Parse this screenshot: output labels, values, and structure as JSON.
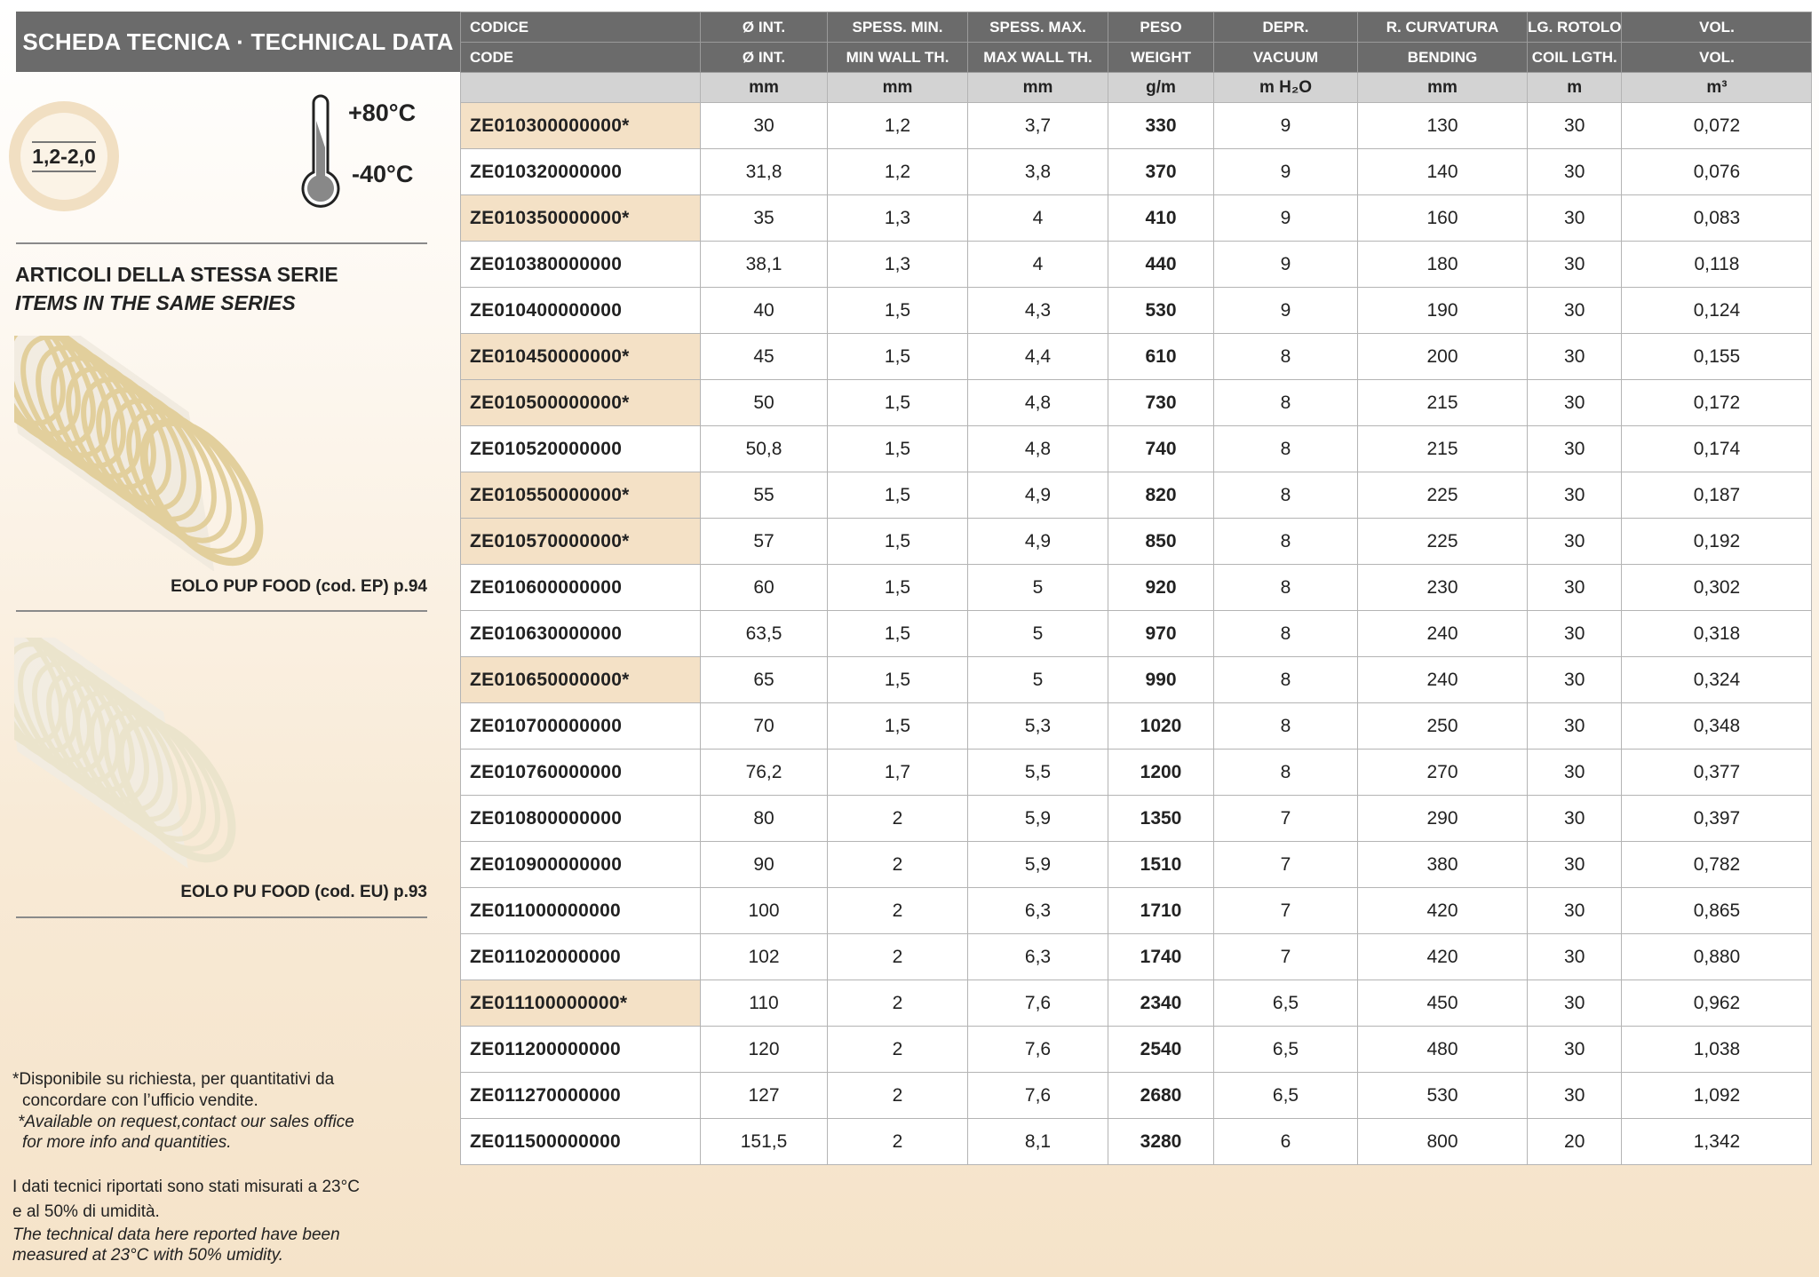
{
  "header": {
    "title": "SCHEDA TECNICA · TECHNICAL DATA"
  },
  "thickness_badge": "1,2-2,0",
  "temperature": {
    "max": "+80°C",
    "min": "-40°C"
  },
  "series": {
    "title_it": "ARTICOLI DELLA STESSA SERIE",
    "title_en": "ITEMS IN THE SAME SERIES",
    "items": [
      {
        "caption": "EOLO PUP FOOD (cod. EP) p.94",
        "image": "hose-yellow-spiral"
      },
      {
        "caption": "EOLO PU FOOD (cod. EU) p.93",
        "image": "hose-white-spiral"
      }
    ]
  },
  "notes": {
    "asterisk_it_1": "*Disponibile su richiesta, per quantitativi da",
    "asterisk_it_2": "concordare con l’ufficio vendite.",
    "asterisk_en_1": "*Available on request,contact our sales office",
    "asterisk_en_2": "for more info and quantities.",
    "conditions_it_1": "I dati tecnici riportati sono stati misurati a 23°C",
    "conditions_it_2": "e al 50% di umidità.",
    "conditions_en_1": "The technical data here reported have been",
    "conditions_en_2": "measured at 23°C with 50% umidity."
  },
  "colors": {
    "header_bg": "#6b6b6b",
    "unit_bg": "#d3d3d3",
    "highlight": "#f4e1c6"
  },
  "table": {
    "headers_it": [
      "CODICE",
      "Ø INT.",
      "SPESS. MIN.",
      "SPESS. MAX.",
      "PESO",
      "DEPR.",
      "R. CURVATURA",
      "LG. ROTOLO",
      "VOL."
    ],
    "headers_en": [
      "CODE",
      "Ø INT.",
      "MIN WALL TH.",
      "MAX WALL TH.",
      "WEIGHT",
      "VACUUM",
      "BENDING",
      "COIL LGTH.",
      "VOL."
    ],
    "units": [
      "",
      "mm",
      "mm",
      "mm",
      "g/m",
      "m H₂O",
      "mm",
      "m",
      "m³"
    ],
    "rows": [
      [
        "ZE010300000000*",
        "30",
        "1,2",
        "3,7",
        "330",
        "9",
        "130",
        "30",
        "0,072"
      ],
      [
        "ZE010320000000",
        "31,8",
        "1,2",
        "3,8",
        "370",
        "9",
        "140",
        "30",
        "0,076"
      ],
      [
        "ZE010350000000*",
        "35",
        "1,3",
        "4",
        "410",
        "9",
        "160",
        "30",
        "0,083"
      ],
      [
        "ZE010380000000",
        "38,1",
        "1,3",
        "4",
        "440",
        "9",
        "180",
        "30",
        "0,118"
      ],
      [
        "ZE010400000000",
        "40",
        "1,5",
        "4,3",
        "530",
        "9",
        "190",
        "30",
        "0,124"
      ],
      [
        "ZE010450000000*",
        "45",
        "1,5",
        "4,4",
        "610",
        "8",
        "200",
        "30",
        "0,155"
      ],
      [
        "ZE010500000000*",
        "50",
        "1,5",
        "4,8",
        "730",
        "8",
        "215",
        "30",
        "0,172"
      ],
      [
        "ZE010520000000",
        "50,8",
        "1,5",
        "4,8",
        "740",
        "8",
        "215",
        "30",
        "0,174"
      ],
      [
        "ZE010550000000*",
        "55",
        "1,5",
        "4,9",
        "820",
        "8",
        "225",
        "30",
        "0,187"
      ],
      [
        "ZE010570000000*",
        "57",
        "1,5",
        "4,9",
        "850",
        "8",
        "225",
        "30",
        "0,192"
      ],
      [
        "ZE010600000000",
        "60",
        "1,5",
        "5",
        "920",
        "8",
        "230",
        "30",
        "0,302"
      ],
      [
        "ZE010630000000",
        "63,5",
        "1,5",
        "5",
        "970",
        "8",
        "240",
        "30",
        "0,318"
      ],
      [
        "ZE010650000000*",
        "65",
        "1,5",
        "5",
        "990",
        "8",
        "240",
        "30",
        "0,324"
      ],
      [
        "ZE010700000000",
        "70",
        "1,5",
        "5,3",
        "1020",
        "8",
        "250",
        "30",
        "0,348"
      ],
      [
        "ZE010760000000",
        "76,2",
        "1,7",
        "5,5",
        "1200",
        "8",
        "270",
        "30",
        "0,377"
      ],
      [
        "ZE010800000000",
        "80",
        "2",
        "5,9",
        "1350",
        "7",
        "290",
        "30",
        "0,397"
      ],
      [
        "ZE010900000000",
        "90",
        "2",
        "5,9",
        "1510",
        "7",
        "380",
        "30",
        "0,782"
      ],
      [
        "ZE011000000000",
        "100",
        "2",
        "6,3",
        "1710",
        "7",
        "420",
        "30",
        "0,865"
      ],
      [
        "ZE011020000000",
        "102",
        "2",
        "6,3",
        "1740",
        "7",
        "420",
        "30",
        "0,880"
      ],
      [
        "ZE011100000000*",
        "110",
        "2",
        "7,6",
        "2340",
        "6,5",
        "450",
        "30",
        "0,962"
      ],
      [
        "ZE011200000000",
        "120",
        "2",
        "7,6",
        "2540",
        "6,5",
        "480",
        "30",
        "1,038"
      ],
      [
        "ZE011270000000",
        "127",
        "2",
        "7,6",
        "2680",
        "6,5",
        "530",
        "30",
        "1,092"
      ],
      [
        "ZE011500000000",
        "151,5",
        "2",
        "8,1",
        "3280",
        "6",
        "800",
        "20",
        "1,342"
      ]
    ]
  }
}
